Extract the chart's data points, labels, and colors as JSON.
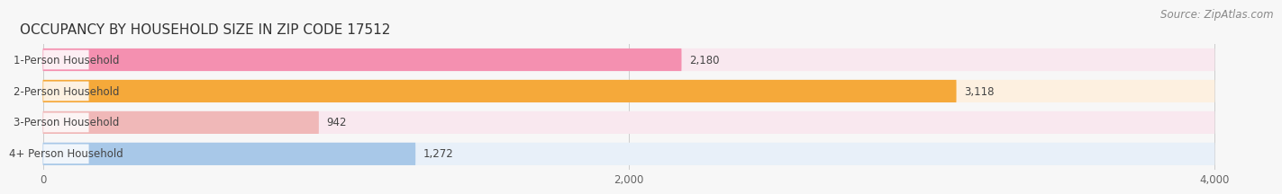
{
  "title": "OCCUPANCY BY HOUSEHOLD SIZE IN ZIP CODE 17512",
  "source": "Source: ZipAtlas.com",
  "categories": [
    "1-Person Household",
    "2-Person Household",
    "3-Person Household",
    "4+ Person Household"
  ],
  "values": [
    2180,
    3118,
    942,
    1272
  ],
  "bar_colors": [
    "#f490b0",
    "#f5a93a",
    "#f0b8b8",
    "#a8c8e8"
  ],
  "bar_bg_colors": [
    "#f9e8ef",
    "#fdf0e0",
    "#f9e8ef",
    "#e8f0f9"
  ],
  "xlim_data": [
    0,
    4000
  ],
  "xlim_display": [
    -80,
    4200
  ],
  "xticks": [
    0,
    2000,
    4000
  ],
  "title_fontsize": 11,
  "label_fontsize": 8.5,
  "value_fontsize": 8.5,
  "source_fontsize": 8.5,
  "bar_height": 0.72,
  "background_color": "#f7f7f7",
  "value_label_colors": [
    "#555555",
    "#ffffff",
    "#555555",
    "#555555"
  ]
}
